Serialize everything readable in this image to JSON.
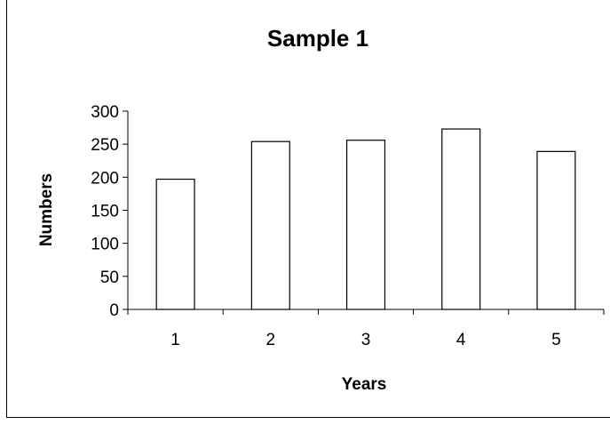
{
  "chart_data": {
    "type": "bar",
    "title": "Sample 1",
    "xlabel": "Years",
    "ylabel": "Numbers",
    "categories": [
      "1",
      "2",
      "3",
      "4",
      "5"
    ],
    "values": [
      197,
      254,
      256,
      273,
      239
    ],
    "ylim": [
      0,
      300
    ],
    "yticks": [
      "0",
      "50",
      "100",
      "150",
      "200",
      "250",
      "300"
    ],
    "legend": "none",
    "grid": false,
    "bar_fill": "#ffffff",
    "bar_stroke": "#000000"
  }
}
